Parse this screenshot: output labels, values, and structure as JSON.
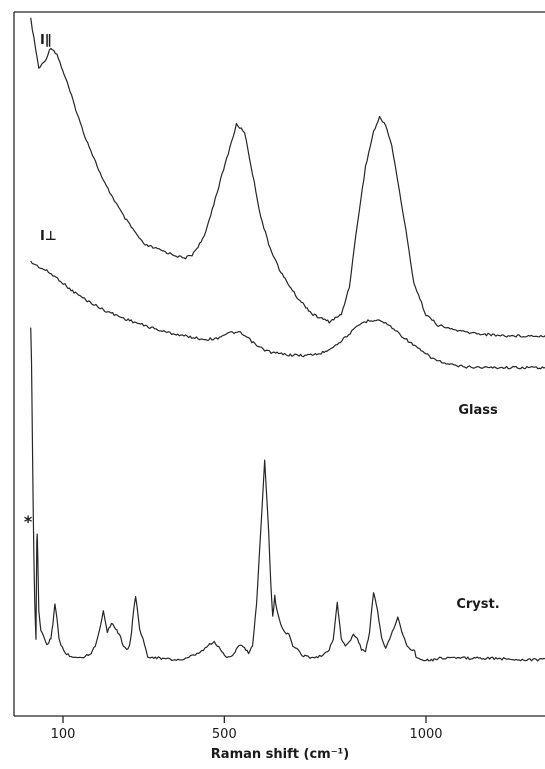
{
  "chart_data": {
    "type": "line",
    "title": "",
    "xlabel": "Raman shift (cm⁻¹)",
    "ylabel": "",
    "xlim": [
      -30,
      1300
    ],
    "ylim": [
      0,
      100
    ],
    "xticks": [
      100,
      500,
      1000
    ],
    "xtick_labels": [
      "100",
      "500",
      "1000"
    ],
    "grid": false,
    "legend": "none",
    "labels": {
      "i_parallel": "I∥",
      "i_perp": "I⊥",
      "glass": "Glass",
      "cryst": "Cryst.",
      "asterisk": "*"
    },
    "series": [
      {
        "key": "glass_parallel",
        "x": [
          20,
          40,
          55,
          70,
          85,
          110,
          150,
          200,
          250,
          300,
          350,
          400,
          420,
          450,
          470,
          490,
          510,
          530,
          550,
          570,
          590,
          610,
          640,
          680,
          720,
          760,
          790,
          810,
          830,
          850,
          870,
          885,
          900,
          915,
          930,
          950,
          970,
          1000,
          1030,
          1060,
          1100,
          1150,
          1200,
          1250,
          1300
        ],
        "y": [
          99,
          92,
          93,
          95,
          94,
          90,
          83,
          76,
          71,
          67,
          66,
          65,
          65.5,
          68,
          72,
          76,
          80,
          84,
          83,
          77,
          71,
          67,
          63,
          59.5,
          57,
          56,
          57,
          61,
          70,
          78,
          83,
          85,
          84,
          81,
          76,
          69,
          61.5,
          57,
          55.5,
          55,
          54.5,
          54.2,
          54,
          54,
          54
        ]
      },
      {
        "key": "glass_perp",
        "x": [
          20,
          40,
          60,
          90,
          120,
          160,
          200,
          250,
          300,
          350,
          400,
          450,
          480,
          500,
          520,
          540,
          560,
          580,
          600,
          620,
          660,
          700,
          740,
          780,
          800,
          820,
          840,
          860,
          880,
          900,
          920,
          940,
          960,
          980,
          1000,
          1020,
          1050,
          1080,
          1100,
          1150,
          1200,
          1250,
          1300
        ],
        "y": [
          64.5,
          63.8,
          63.2,
          62,
          60.5,
          59,
          57.7,
          56.5,
          55.5,
          54.6,
          54,
          53.5,
          53.6,
          54.2,
          54.5,
          54.4,
          53.6,
          52.6,
          52,
          51.6,
          51.3,
          51.2,
          51.5,
          52.8,
          53.8,
          54.8,
          55.8,
          56.2,
          56.3,
          55.8,
          55,
          54,
          53.1,
          52.2,
          51.4,
          50.7,
          50,
          49.7,
          49.6,
          49.5,
          49.5,
          49.5,
          49.5
        ]
      },
      {
        "key": "crystal",
        "x": [
          20,
          22,
          24,
          26,
          28,
          30,
          33,
          35,
          36,
          37,
          40,
          45,
          55,
          60,
          65,
          70,
          75,
          80,
          85,
          90,
          95,
          105,
          120,
          140,
          155,
          170,
          180,
          190,
          200,
          210,
          220,
          230,
          240,
          250,
          258,
          265,
          270,
          275,
          280,
          290,
          310,
          340,
          370,
          400,
          420,
          440,
          460,
          475,
          490,
          500,
          510,
          520,
          530,
          540,
          550,
          560,
          570,
          580,
          590,
          600,
          610,
          615,
          620,
          625,
          630,
          640,
          650,
          660,
          670,
          680,
          690,
          700,
          720,
          740,
          760,
          770,
          780,
          790,
          800,
          810,
          820,
          830,
          840,
          850,
          860,
          870,
          880,
          890,
          900,
          910,
          920,
          930,
          940,
          950,
          960,
          970,
          975,
          980,
          990,
          1000,
          1010,
          1020,
          1030,
          1060,
          1100,
          1150,
          1200,
          1250,
          1300
        ],
        "y": [
          55,
          50,
          40,
          30,
          22,
          16,
          11,
          24.7,
          26,
          24,
          15,
          12,
          11,
          10,
          10.5,
          11,
          13,
          16,
          14,
          11,
          10,
          9,
          8.5,
          8.2,
          8.5,
          9,
          10,
          12,
          15,
          12,
          13.2,
          12.5,
          11.5,
          10,
          9.5,
          10,
          12,
          15,
          17,
          12.5,
          8.5,
          8.2,
          8,
          8,
          8.5,
          9,
          10,
          10.5,
          9.5,
          8.6,
          8.4,
          8.6,
          9.5,
          10.2,
          9.6,
          9,
          10,
          16,
          26,
          36.5,
          26,
          19,
          14,
          17,
          15,
          13,
          12,
          11.5,
          10,
          9.5,
          8.8,
          8.5,
          8.3,
          8.5,
          9.5,
          11,
          16,
          11,
          10,
          10.5,
          11.5,
          11,
          9.5,
          9,
          12,
          17.5,
          15,
          11,
          9.8,
          11,
          12.5,
          14,
          12,
          10.3,
          9.5,
          9.5,
          8.5,
          8.2,
          8.1,
          8,
          8,
          8,
          8.2,
          8.3,
          8.2,
          8.2,
          8.1,
          8,
          8
        ]
      }
    ]
  }
}
